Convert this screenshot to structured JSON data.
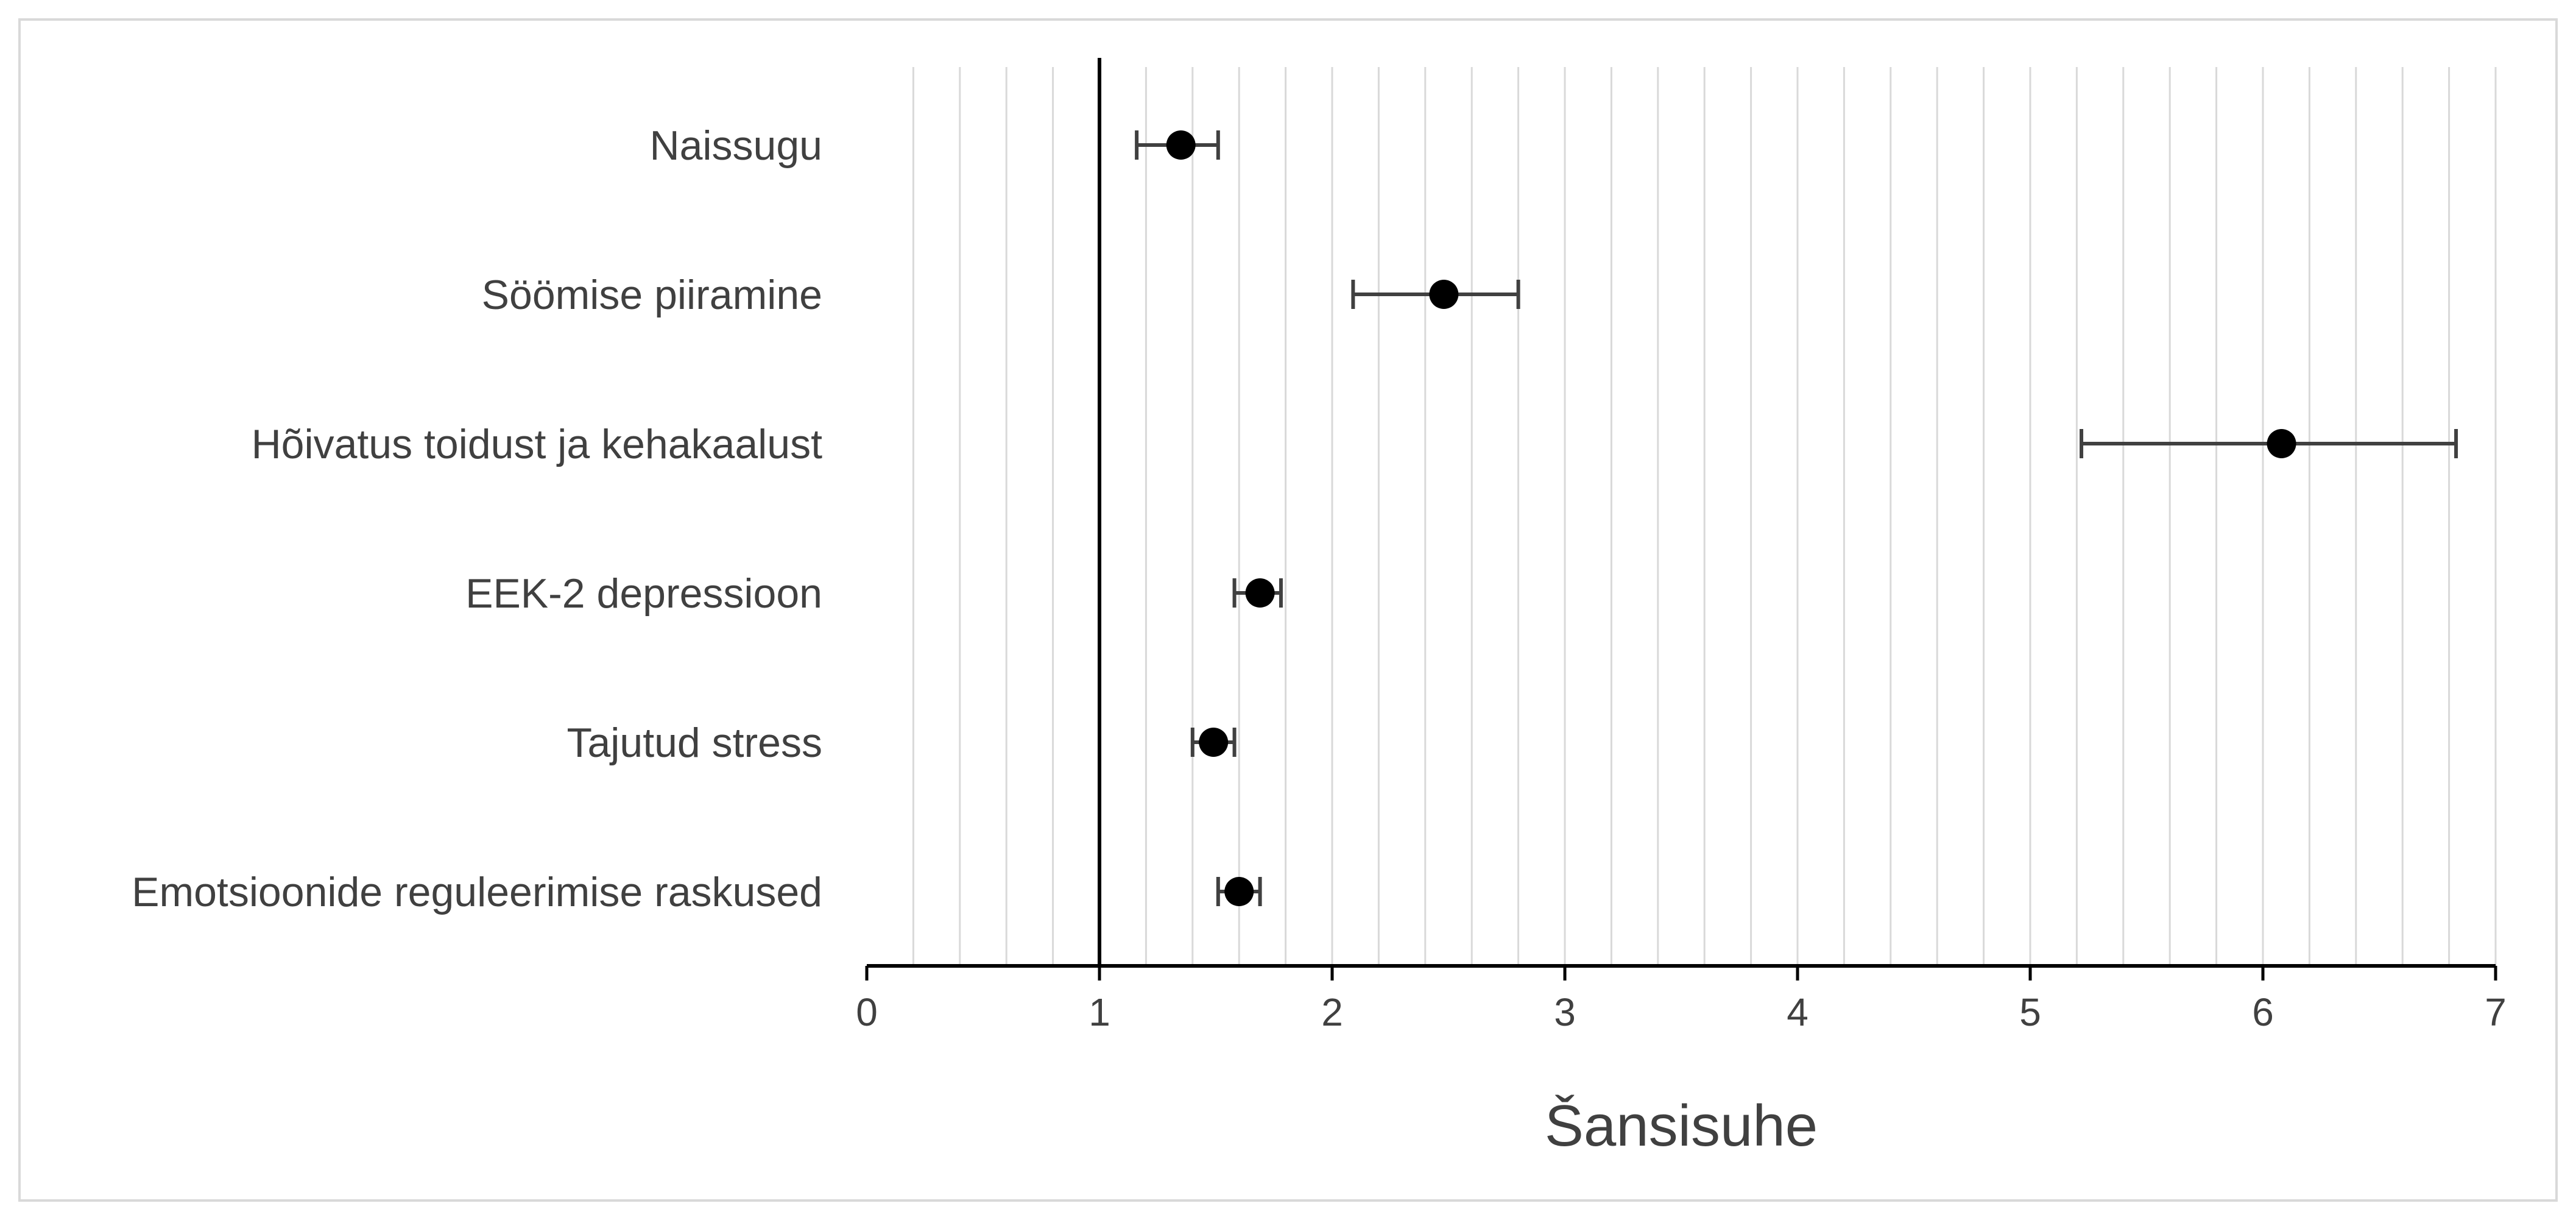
{
  "chart_data": {
    "type": "scatter",
    "variant": "forest-plot",
    "title": "",
    "xlabel": "Šansisuhe",
    "ylabel": "",
    "xlim": [
      0,
      7
    ],
    "x_ticks": [
      "0",
      "1",
      "2",
      "3",
      "4",
      "5",
      "6",
      "7"
    ],
    "minor_gridlines_step": 0.2,
    "reference_line_x": 1,
    "grid": true,
    "legend": "none",
    "colors": {
      "marker": "#000000",
      "errorbar": "#404040",
      "grid": "#d9d9d9",
      "text": "#404040",
      "frame": "#d9d9d9"
    },
    "rows": [
      {
        "label": "Naissugu",
        "or": 1.35,
        "ci_low": 1.16,
        "ci_high": 1.51
      },
      {
        "label": "Söömise piiramine",
        "or": 2.48,
        "ci_low": 2.09,
        "ci_high": 2.8
      },
      {
        "label": "Hõivatus toidust ja kehakaalust",
        "or": 6.08,
        "ci_low": 5.22,
        "ci_high": 6.83
      },
      {
        "label": "EEK-2 depressioon",
        "or": 1.69,
        "ci_low": 1.58,
        "ci_high": 1.78
      },
      {
        "label": "Tajutud stress",
        "or": 1.49,
        "ci_low": 1.4,
        "ci_high": 1.58
      },
      {
        "label": "Emotsioonide reguleerimise raskused",
        "or": 1.6,
        "ci_low": 1.51,
        "ci_high": 1.69
      }
    ]
  }
}
